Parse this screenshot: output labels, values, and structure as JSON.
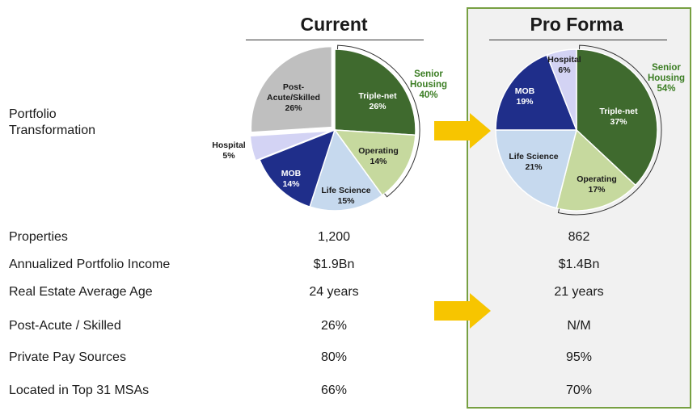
{
  "headers": {
    "current": "Current",
    "pro_forma": "Pro Forma"
  },
  "row_labels": {
    "portfolio": [
      "Portfolio",
      "Transformation"
    ],
    "properties": "Properties",
    "income": "Annualized Portfolio Income",
    "age": "Real Estate Average Age",
    "post_acute": "Post-Acute / Skilled",
    "private_pay": "Private Pay Sources",
    "top_msas": "Located in Top 31 MSAs"
  },
  "current_values": {
    "properties": "1,200",
    "income": "$1.9Bn",
    "age": "24 years",
    "post_acute": "26%",
    "private_pay": "80%",
    "top_msas": "66%"
  },
  "pro_forma_values": {
    "properties": "862",
    "income": "$1.4Bn",
    "age": "21 years",
    "post_acute": "N/M",
    "private_pay": "95%",
    "top_msas": "70%"
  },
  "colors": {
    "triple_net": "#3f6a2e",
    "operating": "#c6d99e",
    "life_science": "#c6d9ee",
    "mob": "#1f2e8a",
    "hospital": "#d3d3f4",
    "post_acute": "#bfbfbf",
    "senior_housing_label": "#3b7d23",
    "arrow": "#f7c500",
    "box_border": "#77a042"
  },
  "chart_data": [
    {
      "type": "pie",
      "title": "Current",
      "slices": [
        {
          "name": [
            "Triple-net"
          ],
          "value": 26,
          "label": "26%",
          "color": "#3f6a2e"
        },
        {
          "name": [
            "Operating"
          ],
          "value": 14,
          "label": "14%",
          "color": "#c6d99e"
        },
        {
          "name": [
            "Life Science"
          ],
          "value": 15,
          "label": "15%",
          "color": "#c6d9ee"
        },
        {
          "name": [
            "MOB"
          ],
          "value": 14,
          "label": "14%",
          "color": "#1f2e8a"
        },
        {
          "name": [
            "Hospital"
          ],
          "value": 5,
          "label": "5%",
          "color": "#d3d3f4",
          "exploded": true
        },
        {
          "name": [
            "Post-",
            "Acute/Skilled"
          ],
          "value": 26,
          "label": "26%",
          "color": "#bfbfbf",
          "exploded": true
        }
      ],
      "group_annotation": {
        "lines": [
          "Senior",
          "Housing",
          "40%"
        ],
        "covers": [
          "Triple-net",
          "Operating"
        ]
      }
    },
    {
      "type": "pie",
      "title": "Pro Forma",
      "slices": [
        {
          "name": [
            "Triple-net"
          ],
          "value": 37,
          "label": "37%",
          "color": "#3f6a2e"
        },
        {
          "name": [
            "Operating"
          ],
          "value": 17,
          "label": "17%",
          "color": "#c6d99e"
        },
        {
          "name": [
            "Life Science"
          ],
          "value": 21,
          "label": "21%",
          "color": "#c6d9ee"
        },
        {
          "name": [
            "MOB"
          ],
          "value": 19,
          "label": "19%",
          "color": "#1f2e8a"
        },
        {
          "name": [
            "Hospital"
          ],
          "value": 6,
          "label": "6%",
          "color": "#d3d3f4"
        }
      ],
      "group_annotation": {
        "lines": [
          "Senior",
          "Housing",
          "54%"
        ],
        "covers": [
          "Triple-net",
          "Operating"
        ]
      }
    }
  ]
}
